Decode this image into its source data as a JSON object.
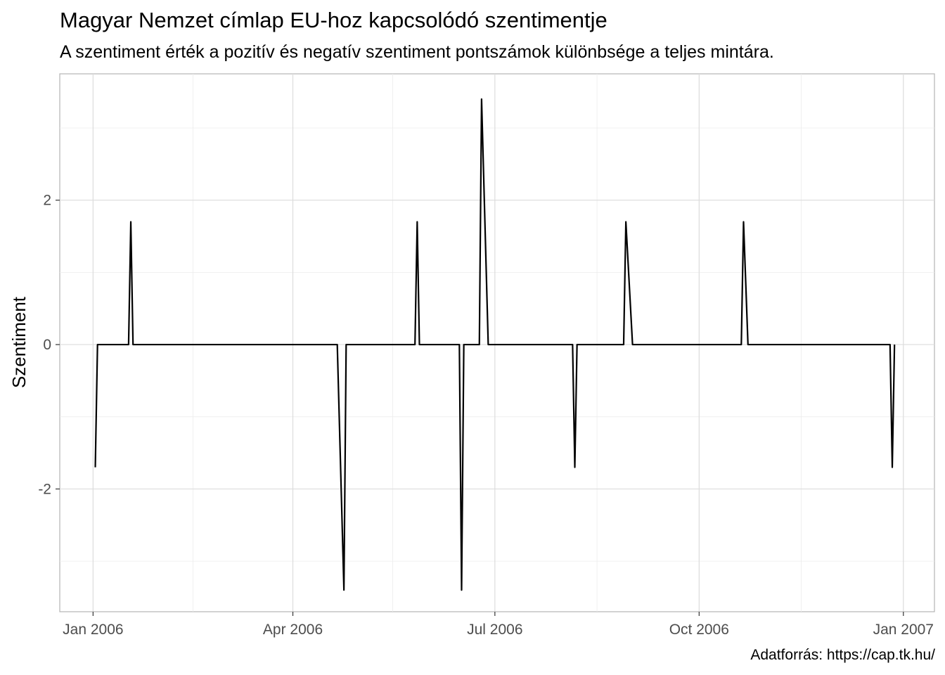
{
  "chart_data": {
    "type": "line",
    "title": "Magyar Nemzet címlap EU-hoz kapcsolódó szentimentje",
    "subtitle": "A szentiment érték a pozitív és negatív szentiment pontszámok különbsége a teljes mintára.",
    "caption": "Adatforrás: https://cap.tk.hu/",
    "xlabel": "",
    "ylabel": "Szentiment",
    "grid": true,
    "legend": "none",
    "line_color": "#000000",
    "xlim": [
      "2005-12-17",
      "2007-01-15"
    ],
    "ylim": [
      -3.7,
      3.75
    ],
    "x_ticks": [
      {
        "date": "2006-01-01",
        "label": "Jan 2006"
      },
      {
        "date": "2006-04-01",
        "label": "Apr 2006"
      },
      {
        "date": "2006-07-01",
        "label": "Jul 2006"
      },
      {
        "date": "2006-10-01",
        "label": "Oct 2006"
      },
      {
        "date": "2007-01-01",
        "label": "Jan 2007"
      }
    ],
    "x_minor_ticks": [
      "2006-02-15",
      "2006-05-16",
      "2006-08-16",
      "2006-11-16"
    ],
    "y_ticks": [
      {
        "value": -2,
        "label": "-2"
      },
      {
        "value": 0,
        "label": "0"
      },
      {
        "value": 2,
        "label": "2"
      }
    ],
    "y_minor_ticks": [
      -3,
      -1,
      1,
      3
    ],
    "series": [
      {
        "points": [
          [
            "2006-01-02",
            -1.7
          ],
          [
            "2006-01-03",
            0
          ],
          [
            "2006-01-17",
            0
          ],
          [
            "2006-01-18",
            1.7
          ],
          [
            "2006-01-19",
            0
          ],
          [
            "2006-04-21",
            0
          ],
          [
            "2006-04-24",
            -3.4
          ],
          [
            "2006-04-25",
            0
          ],
          [
            "2006-05-26",
            0
          ],
          [
            "2006-05-27",
            1.7
          ],
          [
            "2006-05-28",
            0
          ],
          [
            "2006-06-15",
            0
          ],
          [
            "2006-06-16",
            -3.4
          ],
          [
            "2006-06-17",
            0
          ],
          [
            "2006-06-24",
            0
          ],
          [
            "2006-06-25",
            3.4
          ],
          [
            "2006-06-28",
            0
          ],
          [
            "2006-08-05",
            0
          ],
          [
            "2006-08-06",
            -1.7
          ],
          [
            "2006-08-07",
            0
          ],
          [
            "2006-08-28",
            0
          ],
          [
            "2006-08-29",
            1.7
          ],
          [
            "2006-09-01",
            0
          ],
          [
            "2006-10-20",
            0
          ],
          [
            "2006-10-21",
            1.7
          ],
          [
            "2006-10-23",
            0
          ],
          [
            "2006-12-26",
            0
          ],
          [
            "2006-12-27",
            -1.7
          ],
          [
            "2006-12-28",
            0
          ]
        ]
      }
    ]
  }
}
